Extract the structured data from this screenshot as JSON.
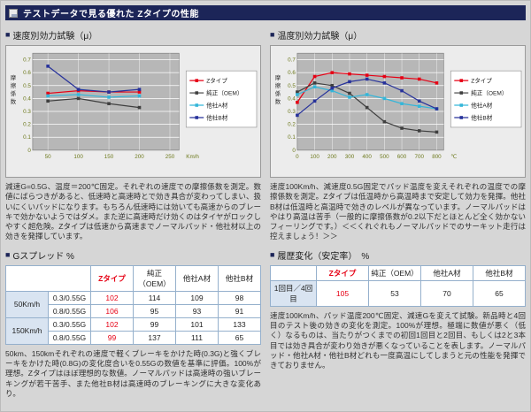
{
  "header": {
    "title": "テストデータで見る優れた Zタイプの性能"
  },
  "ui": {
    "bullet": "■"
  },
  "colors": {
    "navy": "#1c2558",
    "z_red": "#e60014",
    "oem": "#3f3f3f",
    "a_cyan": "#35b6d9",
    "b_blue": "#27329b",
    "plot_bg": "#b7b7b7",
    "tick": "#6e7a1e"
  },
  "left": {
    "section_title": "速度別効力試験（μ）",
    "chart_note": "減速G=0.5G、温度＝200℃固定。それぞれの速度での摩擦係数を測定。数値にばらつきがあると、低速時と高速時とで効き具合が変わってしまい、扱いにくいパッドになります。もちろん低速時には効いても高速からのブレーキで効かないようではダメ。また逆に高速時だけ効くのはタイヤがロックしやすく超危険。Zタイプは低速から高速までノーマルパッド・他社材以上の効きを発揮しています。",
    "table_title": "Gスプレッド %",
    "table": {
      "headers": [
        "Zタイプ",
        "純正（OEM）",
        "他社A材",
        "他社B材"
      ],
      "groups": [
        {
          "label": "50Km/h",
          "rows": [
            {
              "cond": "0.3/0.55G",
              "values": [
                "102",
                "114",
                "109",
                "98"
              ]
            },
            {
              "cond": "0.8/0.55G",
              "values": [
                "106",
                "95",
                "93",
                "91"
              ]
            }
          ]
        },
        {
          "label": "150Km/h",
          "rows": [
            {
              "cond": "0.3/0.55G",
              "values": [
                "102",
                "99",
                "101",
                "133"
              ]
            },
            {
              "cond": "0.8/0.55G",
              "values": [
                "99",
                "137",
                "111",
                "65"
              ]
            }
          ]
        }
      ]
    },
    "table_note": "50km、150kmそれぞれの速度で軽くブレーキをかけた時(0.3G)と強くブレーキをかけた時(0.8G)の変化度合いを0.55Gの数値を基準に評価。100%が理想。Zタイプはほぼ理想的な数値。ノーマルパッドは高速時の強いブレーキングが若干苦手、また他社B材は高速時のブレーキングに大きな変化あり。"
  },
  "right": {
    "section_title": "温度別効力試験（μ）",
    "chart_note": "速度100Km/h、減速度0.5G固定でパッド温度を変えそれぞれの温度での摩擦係数を測定。Zタイプは低温時から高温時まで安定して効力を発揮。他社B材は低温時と高温時で効きのレベルが異なっています。ノーマルパッドはやはり高温は苦手（一般的に摩擦係数が0.2以下だとほとんど全く効かないフィーリングです。）＜＜くれぐれもノーマルパッドでのサーキット走行は控えましょう！＞＞",
    "table_title": "履歴変化（安定率）　%",
    "table": {
      "headers": [
        "Zタイプ",
        "純正（OEM）",
        "他社A材",
        "他社B材"
      ],
      "rows": [
        {
          "label": "1回目／4回目",
          "values": [
            "105",
            "53",
            "70",
            "65"
          ]
        }
      ]
    },
    "table_note": "速度100Km/h、パッド温度200℃固定、減速Gを変えて試験。新品時と4回目のテスト後の効きの変化を測定。100%が理想。極端に数値が悪く（低く）なるものは、当たりがつくまでの初回1回目と2回目、もしくは2と3本目では効き具合が変わり効きが悪くなっていることを表します。ノーマルパッド・他社A材・他社B材どれも一度高温にしてしまうと元の性能を発揮できておりません。"
  },
  "chart_data": [
    {
      "type": "line",
      "name": "speed-effect",
      "title": "速度別効力試験",
      "xlabel": "速度",
      "xunit": "Km/h",
      "ylabel": "摩擦係数",
      "x": [
        50,
        100,
        150,
        200
      ],
      "xticks": [
        50,
        100,
        150,
        200,
        250
      ],
      "xlim": [
        25,
        265
      ],
      "ylim": [
        0,
        0.75
      ],
      "yticks": [
        0,
        0.1,
        0.2,
        0.3,
        0.4,
        0.5,
        0.6,
        0.7
      ],
      "grid": true,
      "legend_position": "right",
      "series": [
        {
          "name": "Zタイプ",
          "color_key": "z_red",
          "values": [
            0.44,
            0.46,
            0.45,
            0.45
          ]
        },
        {
          "name": "純正（OEM）",
          "color_key": "oem",
          "values": [
            0.38,
            0.4,
            0.36,
            0.33
          ]
        },
        {
          "name": "他社A材",
          "color_key": "a_cyan",
          "values": [
            0.42,
            0.43,
            0.41,
            0.42
          ]
        },
        {
          "name": "他社B材",
          "color_key": "b_blue",
          "values": [
            0.65,
            0.47,
            0.45,
            0.47
          ]
        }
      ]
    },
    {
      "type": "line",
      "name": "temperature-effect",
      "title": "温度別効力試験",
      "xlabel": "温度",
      "xunit": "℃",
      "ylabel": "摩擦係数",
      "x": [
        0,
        100,
        200,
        300,
        400,
        500,
        600,
        700,
        800
      ],
      "xticks": [
        0,
        100,
        200,
        300,
        400,
        500,
        600,
        700,
        800
      ],
      "xlim": [
        0,
        840
      ],
      "ylim": [
        0,
        0.75
      ],
      "yticks": [
        0,
        0.1,
        0.2,
        0.3,
        0.4,
        0.5,
        0.6,
        0.7
      ],
      "grid": true,
      "legend_position": "right",
      "series": [
        {
          "name": "Zタイプ",
          "color_key": "z_red",
          "values": [
            0.37,
            0.57,
            0.6,
            0.59,
            0.58,
            0.57,
            0.56,
            0.55,
            0.52
          ]
        },
        {
          "name": "純正（OEM）",
          "color_key": "oem",
          "values": [
            0.45,
            0.52,
            0.5,
            0.44,
            0.33,
            0.22,
            0.17,
            0.15,
            0.14
          ]
        },
        {
          "name": "他社A材",
          "color_key": "a_cyan",
          "values": [
            0.43,
            0.49,
            0.46,
            0.41,
            0.43,
            0.4,
            0.36,
            0.34,
            0.32
          ]
        },
        {
          "name": "他社B材",
          "color_key": "b_blue",
          "values": [
            0.27,
            0.38,
            0.48,
            0.53,
            0.55,
            0.52,
            0.46,
            0.38,
            0.32
          ]
        }
      ]
    }
  ]
}
